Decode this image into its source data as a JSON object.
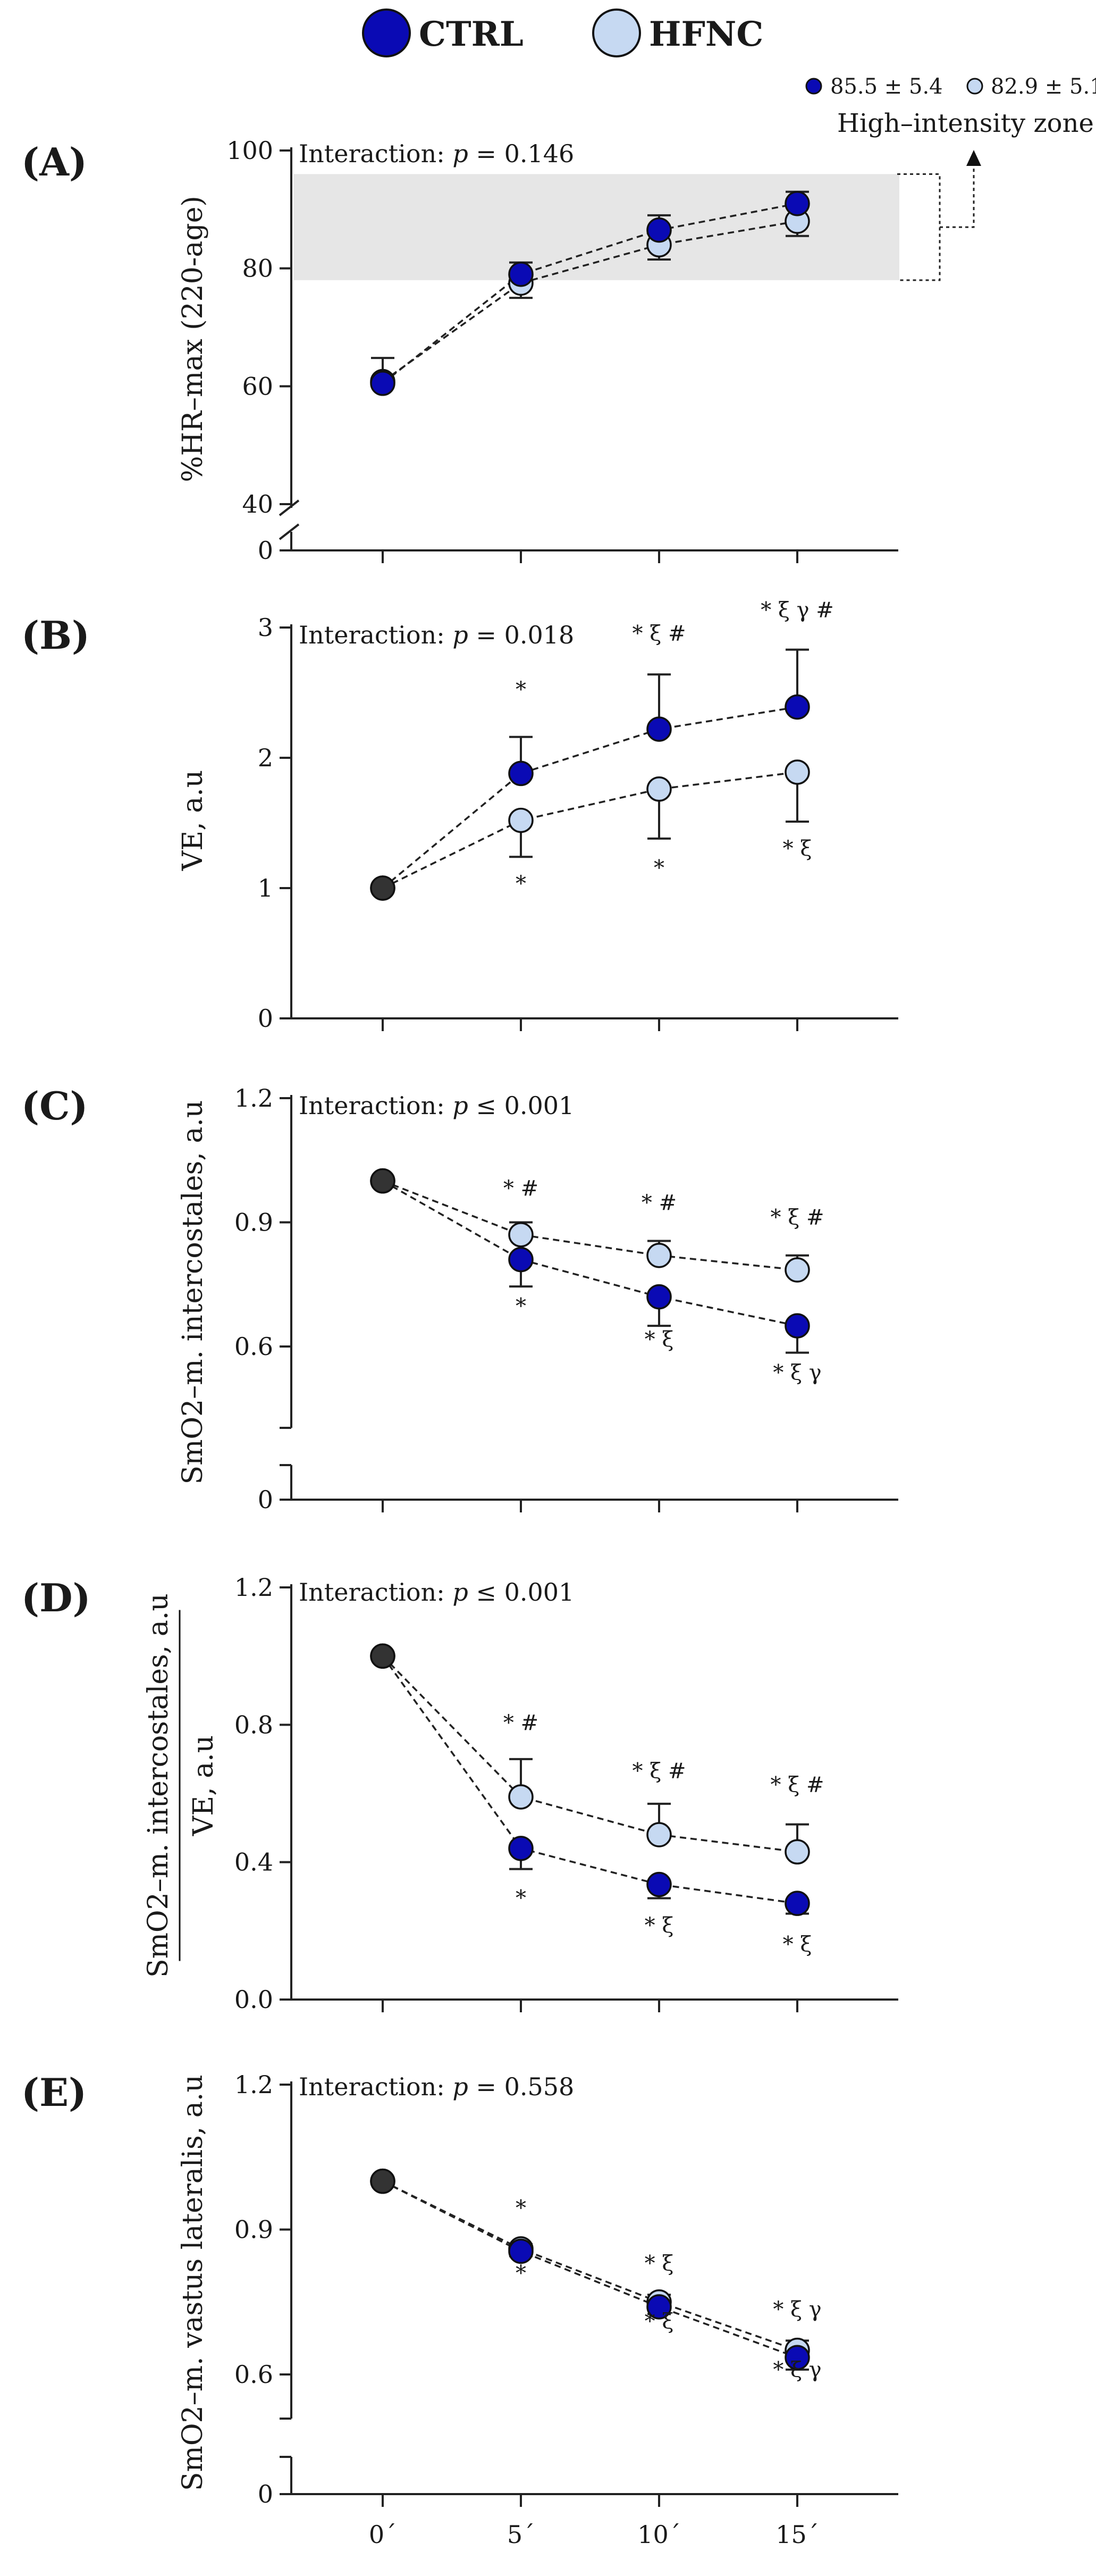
{
  "legend": {
    "items": [
      {
        "label": "CTRL",
        "color": "#0a0ab4"
      },
      {
        "label": "HFNC",
        "color": "#c6d9f2"
      }
    ],
    "hr_values": [
      "85.5 ± 5.4",
      "82.9 ± 5.1"
    ],
    "zone_label": "High–intensity zone"
  },
  "x_tick_labels": [
    "0´",
    "5´",
    "10´",
    "15´"
  ],
  "colors": {
    "ctrl": "#0a0ab4",
    "hfnc": "#c6d9f2",
    "baseline": "#333333",
    "zone": "#e6e6e6",
    "axis": "#222222"
  },
  "chart_data": [
    {
      "type": "line",
      "panel_label": "(A)",
      "ylabel": "%HR–max (220-age)",
      "interaction": {
        "prefix": "Interaction: ",
        "p": "p",
        "value": " = 0.146"
      },
      "y_ticks": [
        0,
        40,
        60,
        80,
        100
      ],
      "ylim": [
        40,
        100
      ],
      "axis_break": true,
      "high_intensity_zone": [
        78,
        96
      ],
      "x": [
        "0´",
        "5´",
        "10´",
        "15´"
      ],
      "series": [
        {
          "name": "CTRL",
          "values": [
            60.5,
            79.0,
            86.5,
            91.0
          ],
          "errors": [
            null,
            2.0,
            2.5,
            2.0
          ]
        },
        {
          "name": "HFNC",
          "values": [
            60.8,
            77.5,
            84.0,
            88.0
          ],
          "errors": [
            4.0,
            2.5,
            2.5,
            2.5
          ]
        }
      ],
      "annotations": []
    },
    {
      "type": "line",
      "panel_label": "(B)",
      "ylabel": "VE, a.u",
      "interaction": {
        "prefix": "Interaction: ",
        "p": "p",
        "value": " = 0.018"
      },
      "y_ticks": [
        0,
        1,
        2,
        3
      ],
      "ylim": [
        0,
        3
      ],
      "axis_break": false,
      "x": [
        "0´",
        "5´",
        "10´",
        "15´"
      ],
      "series": [
        {
          "name": "CTRL",
          "values": [
            1.0,
            1.88,
            2.22,
            2.39
          ],
          "errors": [
            null,
            0.28,
            0.42,
            0.44
          ]
        },
        {
          "name": "HFNC",
          "values": [
            1.0,
            1.52,
            1.76,
            1.89
          ],
          "errors": [
            null,
            0.28,
            0.38,
            0.38
          ]
        }
      ],
      "annotations": [
        {
          "xi": 1,
          "y": 2.47,
          "text": "*"
        },
        {
          "xi": 2,
          "y": 2.9,
          "text": "* ξ #"
        },
        {
          "xi": 3,
          "y": 3.08,
          "text": "* ξ γ #"
        },
        {
          "xi": 1,
          "y": 0.98,
          "text": "*"
        },
        {
          "xi": 2,
          "y": 1.1,
          "text": "*"
        },
        {
          "xi": 3,
          "y": 1.25,
          "text": "* ξ"
        }
      ]
    },
    {
      "type": "line",
      "panel_label": "(C)",
      "ylabel": "SmO2–m. intercostales, a.u",
      "interaction": {
        "prefix": "Interaction: ",
        "p": "p",
        "value": " ≤ 0.001"
      },
      "y_ticks": [
        0,
        0.6,
        0.9,
        1.2
      ],
      "y_tick_labels": [
        "0",
        "0.6",
        "0.9",
        "1.2"
      ],
      "ylim": [
        0.6,
        1.2
      ],
      "axis_break": true,
      "x": [
        "0´",
        "5´",
        "10´",
        "15´"
      ],
      "series": [
        {
          "name": "CTRL",
          "values": [
            1.0,
            0.81,
            0.72,
            0.65
          ],
          "errors": [
            null,
            0.065,
            0.07,
            0.065
          ]
        },
        {
          "name": "HFNC",
          "values": [
            1.0,
            0.87,
            0.82,
            0.785
          ],
          "errors": [
            null,
            0.03,
            0.035,
            0.035
          ]
        }
      ],
      "annotations": [
        {
          "xi": 1,
          "y": 0.965,
          "text": "* #"
        },
        {
          "xi": 2,
          "y": 0.93,
          "text": "* #"
        },
        {
          "xi": 3,
          "y": 0.895,
          "text": "* ξ #"
        },
        {
          "xi": 1,
          "y": 0.68,
          "text": "*"
        },
        {
          "xi": 2,
          "y": 0.6,
          "text": "* ξ"
        },
        {
          "xi": 3,
          "y": 0.52,
          "text": "* ξ γ"
        }
      ]
    },
    {
      "type": "line",
      "panel_label": "(D)",
      "ylabel_top": "SmO2–m. intercostales, a.u",
      "ylabel_bottom": "VE, a.u",
      "interaction": {
        "prefix": "Interaction: ",
        "p": "p",
        "value": " ≤ 0.001"
      },
      "y_ticks": [
        0,
        0.4,
        0.8,
        1.2
      ],
      "y_tick_labels": [
        "0.0",
        "0.4",
        "0.8",
        "1.2"
      ],
      "ylim": [
        0,
        1.2
      ],
      "axis_break": false,
      "x": [
        "0´",
        "5´",
        "10´",
        "15´"
      ],
      "series": [
        {
          "name": "CTRL",
          "values": [
            1.0,
            0.44,
            0.335,
            0.28
          ],
          "errors": [
            null,
            0.06,
            0.04,
            0.03
          ]
        },
        {
          "name": "HFNC",
          "values": [
            1.0,
            0.59,
            0.48,
            0.43
          ],
          "errors": [
            null,
            0.11,
            0.09,
            0.08
          ]
        }
      ],
      "annotations": [
        {
          "xi": 1,
          "y": 0.785,
          "text": "* #"
        },
        {
          "xi": 2,
          "y": 0.645,
          "text": "* ξ #"
        },
        {
          "xi": 3,
          "y": 0.605,
          "text": "* ξ #"
        },
        {
          "xi": 1,
          "y": 0.275,
          "text": "*"
        },
        {
          "xi": 2,
          "y": 0.195,
          "text": "* ξ"
        },
        {
          "xi": 3,
          "y": 0.14,
          "text": "* ξ"
        }
      ]
    },
    {
      "type": "line",
      "panel_label": "(E)",
      "ylabel": "SmO2–m. vastus lateralis, a.u",
      "interaction": {
        "prefix": "Interaction: ",
        "p": "p",
        "value": " = 0.558"
      },
      "y_ticks": [
        0,
        0.6,
        0.9,
        1.2
      ],
      "y_tick_labels": [
        "0",
        "0.6",
        "0.9",
        "1.2"
      ],
      "ylim": [
        0.6,
        1.2
      ],
      "axis_break": true,
      "x": [
        "0´",
        "5´",
        "10´",
        "15´"
      ],
      "series": [
        {
          "name": "CTRL",
          "values": [
            1.0,
            0.855,
            0.74,
            0.635
          ],
          "errors": [
            null,
            0.01,
            0.015,
            0.025
          ]
        },
        {
          "name": "HFNC",
          "values": [
            1.0,
            0.86,
            0.75,
            0.65
          ],
          "errors": [
            null,
            0.01,
            0.015,
            0.02
          ]
        }
      ],
      "annotations": [
        {
          "xi": 1,
          "y": 0.93,
          "text": "*"
        },
        {
          "xi": 2,
          "y": 0.815,
          "text": "* ξ"
        },
        {
          "xi": 3,
          "y": 0.72,
          "text": "* ξ γ"
        },
        {
          "xi": 1,
          "y": 0.795,
          "text": "*"
        },
        {
          "xi": 2,
          "y": 0.695,
          "text": "* ξ"
        },
        {
          "xi": 3,
          "y": 0.595,
          "text": "* ξ γ"
        }
      ]
    }
  ]
}
